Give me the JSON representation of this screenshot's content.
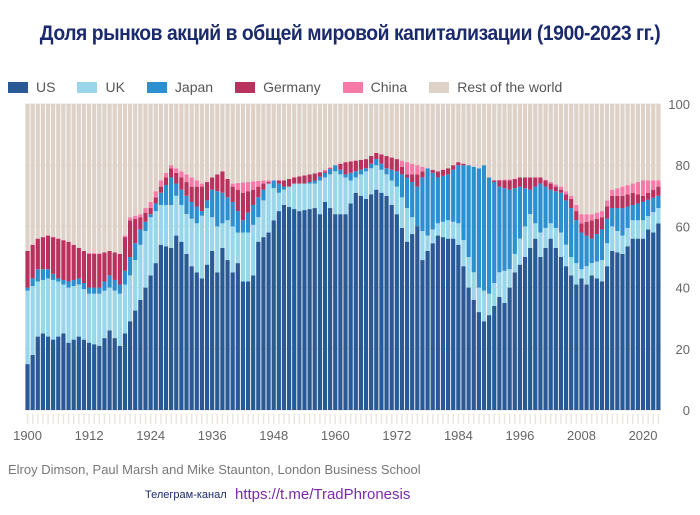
{
  "title": "Доля рынков акций в общей мировой капитализации (1900-2023 гг.)",
  "source": "Elroy Dimson, Paul Marsh and Mike Staunton, London Business School",
  "telegram_label": "Телеграм-канал",
  "telegram_link": "https://t.me/TradPhronesis",
  "chart_data": {
    "type": "bar",
    "stacked": true,
    "title": "Доля рынков акций в общей мировой капитализации (1900-2023 гг.)",
    "ylabel": "%",
    "ylim": [
      0,
      100
    ],
    "yticks": [
      0,
      20,
      40,
      60,
      80,
      100
    ],
    "xticks": [
      1900,
      1912,
      1924,
      1936,
      1948,
      1960,
      1972,
      1984,
      1996,
      2008,
      2020
    ],
    "x_range": [
      1900,
      2023
    ],
    "legend_position": "top",
    "series": [
      {
        "name": "US",
        "color": "#2a5a96",
        "key": [
          [
            1900,
            15
          ],
          [
            1901,
            18
          ],
          [
            1902,
            24
          ],
          [
            1903,
            25
          ],
          [
            1905,
            23
          ],
          [
            1907,
            25
          ],
          [
            1908,
            22
          ],
          [
            1910,
            24
          ],
          [
            1912,
            22
          ],
          [
            1914,
            21
          ],
          [
            1916,
            26
          ],
          [
            1918,
            21
          ],
          [
            1920,
            29
          ],
          [
            1922,
            36
          ],
          [
            1923,
            40
          ],
          [
            1925,
            48
          ],
          [
            1926,
            54
          ],
          [
            1928,
            53
          ],
          [
            1929,
            57
          ],
          [
            1930,
            55
          ],
          [
            1932,
            47
          ],
          [
            1934,
            43
          ],
          [
            1936,
            52
          ],
          [
            1937,
            45
          ],
          [
            1938,
            53
          ],
          [
            1940,
            45
          ],
          [
            1941,
            48
          ],
          [
            1942,
            42
          ],
          [
            1943,
            42
          ],
          [
            1944,
            44
          ],
          [
            1945,
            55
          ],
          [
            1947,
            58
          ],
          [
            1948,
            62
          ],
          [
            1949,
            65
          ],
          [
            1950,
            67
          ],
          [
            1953,
            65
          ],
          [
            1956,
            66
          ],
          [
            1957,
            64
          ],
          [
            1958,
            68
          ],
          [
            1960,
            64
          ],
          [
            1962,
            64
          ],
          [
            1964,
            71
          ],
          [
            1966,
            69
          ],
          [
            1968,
            72
          ],
          [
            1970,
            70
          ],
          [
            1972,
            64
          ],
          [
            1974,
            55
          ],
          [
            1976,
            60
          ],
          [
            1977,
            49
          ],
          [
            1978,
            52
          ],
          [
            1980,
            57
          ],
          [
            1982,
            56
          ],
          [
            1983,
            56
          ],
          [
            1984,
            54
          ],
          [
            1986,
            40
          ],
          [
            1987,
            36
          ],
          [
            1988,
            32
          ],
          [
            1989,
            29
          ],
          [
            1990,
            31
          ],
          [
            1992,
            37
          ],
          [
            1993,
            35
          ],
          [
            1995,
            45
          ],
          [
            1997,
            50
          ],
          [
            1999,
            56
          ],
          [
            2000,
            50
          ],
          [
            2002,
            56
          ],
          [
            2004,
            50
          ],
          [
            2006,
            44
          ],
          [
            2007,
            41
          ],
          [
            2008,
            43
          ],
          [
            2009,
            41
          ],
          [
            2010,
            44
          ],
          [
            2012,
            42
          ],
          [
            2014,
            52
          ],
          [
            2016,
            51
          ],
          [
            2018,
            56
          ],
          [
            2020,
            56
          ],
          [
            2021,
            59
          ],
          [
            2022,
            58
          ],
          [
            2023,
            61
          ]
        ]
      },
      {
        "name": "UK",
        "color": "#9ad6ea",
        "key": [
          [
            1900,
            39
          ],
          [
            1902,
            42
          ],
          [
            1904,
            43
          ],
          [
            1906,
            42
          ],
          [
            1908,
            40
          ],
          [
            1910,
            41
          ],
          [
            1912,
            38
          ],
          [
            1914,
            38
          ],
          [
            1916,
            40
          ],
          [
            1918,
            38
          ],
          [
            1920,
            44
          ],
          [
            1922,
            54
          ],
          [
            1924,
            63
          ],
          [
            1926,
            67
          ],
          [
            1928,
            67
          ],
          [
            1929,
            70
          ],
          [
            1931,
            64
          ],
          [
            1933,
            61
          ],
          [
            1935,
            66
          ],
          [
            1937,
            60
          ],
          [
            1939,
            62
          ],
          [
            1941,
            58
          ],
          [
            1943,
            58
          ],
          [
            1945,
            63
          ],
          [
            1947,
            74
          ],
          [
            1949,
            71
          ],
          [
            1952,
            74
          ],
          [
            1956,
            74
          ],
          [
            1960,
            78
          ],
          [
            1963,
            75
          ],
          [
            1966,
            78
          ],
          [
            1968,
            80
          ],
          [
            1970,
            77
          ],
          [
            1972,
            73
          ],
          [
            1974,
            66
          ],
          [
            1976,
            60
          ],
          [
            1978,
            57
          ],
          [
            1980,
            61
          ],
          [
            1982,
            62
          ],
          [
            1984,
            61
          ],
          [
            1986,
            50
          ],
          [
            1988,
            40
          ],
          [
            1990,
            38
          ],
          [
            1992,
            45
          ],
          [
            1994,
            46
          ],
          [
            1996,
            56
          ],
          [
            1998,
            64
          ],
          [
            2000,
            58
          ],
          [
            2002,
            61
          ],
          [
            2004,
            58
          ],
          [
            2006,
            50
          ],
          [
            2008,
            46
          ],
          [
            2010,
            48
          ],
          [
            2012,
            49
          ],
          [
            2014,
            60
          ],
          [
            2016,
            57
          ],
          [
            2018,
            62
          ],
          [
            2020,
            62
          ],
          [
            2023,
            66
          ]
        ]
      },
      {
        "name": "Japan",
        "color": "#2c8fcf",
        "key": [
          [
            1900,
            40
          ],
          [
            1902,
            46
          ],
          [
            1904,
            46
          ],
          [
            1906,
            43
          ],
          [
            1908,
            42
          ],
          [
            1910,
            43
          ],
          [
            1912,
            40
          ],
          [
            1914,
            40
          ],
          [
            1916,
            44
          ],
          [
            1918,
            41
          ],
          [
            1920,
            50
          ],
          [
            1922,
            59
          ],
          [
            1924,
            64
          ],
          [
            1926,
            71
          ],
          [
            1928,
            76
          ],
          [
            1930,
            72
          ],
          [
            1932,
            68
          ],
          [
            1934,
            65
          ],
          [
            1936,
            72
          ],
          [
            1938,
            71
          ],
          [
            1940,
            68
          ],
          [
            1942,
            62
          ],
          [
            1944,
            67
          ],
          [
            1946,
            72
          ],
          [
            1948,
            75
          ],
          [
            1950,
            73
          ],
          [
            1952,
            73
          ],
          [
            1956,
            75
          ],
          [
            1960,
            80
          ],
          [
            1962,
            77
          ],
          [
            1966,
            79
          ],
          [
            1968,
            82
          ],
          [
            1970,
            79
          ],
          [
            1972,
            78
          ],
          [
            1974,
            76
          ],
          [
            1976,
            73
          ],
          [
            1978,
            79
          ],
          [
            1980,
            76
          ],
          [
            1982,
            77
          ],
          [
            1984,
            80
          ],
          [
            1986,
            80
          ],
          [
            1988,
            79
          ],
          [
            1989,
            80
          ],
          [
            1990,
            76
          ],
          [
            1992,
            73
          ],
          [
            1994,
            72
          ],
          [
            1996,
            73
          ],
          [
            1998,
            72
          ],
          [
            2000,
            74
          ],
          [
            2002,
            72
          ],
          [
            2004,
            71
          ],
          [
            2006,
            66
          ],
          [
            2008,
            58
          ],
          [
            2010,
            56
          ],
          [
            2012,
            59
          ],
          [
            2014,
            66
          ],
          [
            2016,
            66
          ],
          [
            2018,
            67
          ],
          [
            2020,
            68
          ],
          [
            2023,
            70
          ]
        ]
      },
      {
        "name": "Germany",
        "color": "#b8325d",
        "key": [
          [
            1900,
            52
          ],
          [
            1902,
            56
          ],
          [
            1904,
            57
          ],
          [
            1906,
            56
          ],
          [
            1908,
            55
          ],
          [
            1910,
            53
          ],
          [
            1912,
            51
          ],
          [
            1914,
            51
          ],
          [
            1916,
            52
          ],
          [
            1918,
            51
          ],
          [
            1920,
            62
          ],
          [
            1922,
            63
          ],
          [
            1924,
            66
          ],
          [
            1926,
            73
          ],
          [
            1928,
            79
          ],
          [
            1930,
            76
          ],
          [
            1932,
            73
          ],
          [
            1934,
            73
          ],
          [
            1936,
            76
          ],
          [
            1938,
            78
          ],
          [
            1940,
            73
          ],
          [
            1942,
            71
          ],
          [
            1944,
            72
          ],
          [
            1946,
            74
          ],
          [
            1948,
            75
          ],
          [
            1950,
            75
          ],
          [
            1952,
            76
          ],
          [
            1955,
            77
          ],
          [
            1958,
            78
          ],
          [
            1960,
            80
          ],
          [
            1962,
            81
          ],
          [
            1966,
            82
          ],
          [
            1968,
            84
          ],
          [
            1970,
            83
          ],
          [
            1972,
            82
          ],
          [
            1974,
            77
          ],
          [
            1976,
            77
          ],
          [
            1978,
            79
          ],
          [
            1980,
            78
          ],
          [
            1982,
            79
          ],
          [
            1984,
            81
          ],
          [
            1986,
            80
          ],
          [
            1988,
            78
          ],
          [
            1990,
            75
          ],
          [
            1992,
            75
          ],
          [
            1994,
            75
          ],
          [
            1996,
            76
          ],
          [
            1998,
            76
          ],
          [
            2000,
            76
          ],
          [
            2002,
            74
          ],
          [
            2004,
            72
          ],
          [
            2006,
            69
          ],
          [
            2008,
            61
          ],
          [
            2010,
            62
          ],
          [
            2012,
            63
          ],
          [
            2014,
            70
          ],
          [
            2016,
            70
          ],
          [
            2018,
            71
          ],
          [
            2020,
            70
          ],
          [
            2023,
            73
          ]
        ]
      },
      {
        "name": "China",
        "color": "#f57aa6",
        "key": [
          [
            1900,
            52
          ],
          [
            1918,
            51
          ],
          [
            1920,
            63
          ],
          [
            1922,
            64
          ],
          [
            1924,
            68
          ],
          [
            1926,
            75
          ],
          [
            1928,
            80
          ],
          [
            1930,
            78
          ],
          [
            1934,
            74
          ],
          [
            1940,
            74
          ],
          [
            1946,
            75
          ],
          [
            1950,
            75
          ],
          [
            1956,
            77
          ],
          [
            1960,
            80
          ],
          [
            1970,
            83
          ],
          [
            1980,
            78
          ],
          [
            1990,
            75
          ],
          [
            2000,
            76
          ],
          [
            2004,
            73
          ],
          [
            2006,
            70
          ],
          [
            2008,
            64
          ],
          [
            2010,
            64
          ],
          [
            2012,
            65
          ],
          [
            2014,
            72
          ],
          [
            2016,
            73
          ],
          [
            2018,
            74
          ],
          [
            2020,
            75
          ],
          [
            2023,
            75
          ]
        ]
      },
      {
        "name": "Rest of the world",
        "color": "#ddd1c8",
        "key": [
          [
            1900,
            100
          ],
          [
            2023,
            100
          ]
        ]
      }
    ]
  }
}
